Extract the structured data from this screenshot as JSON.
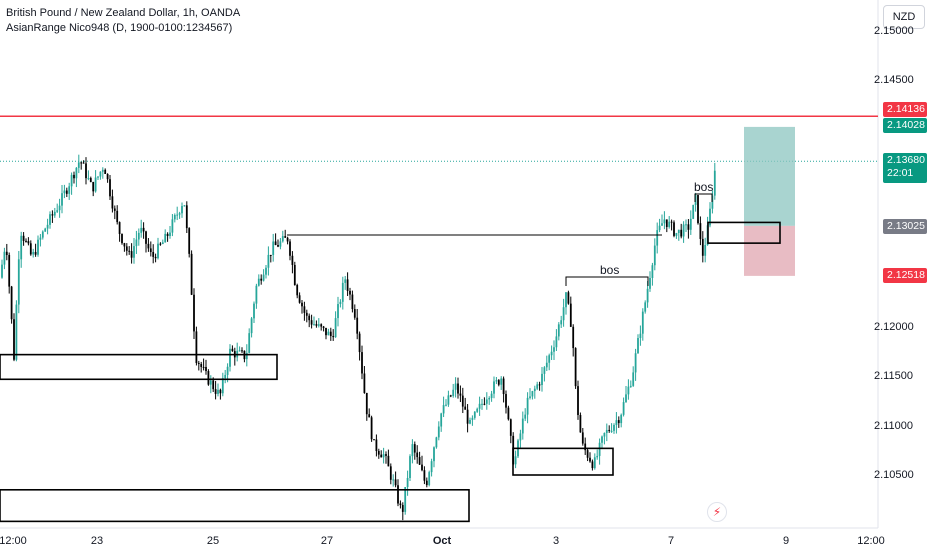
{
  "legend": {
    "symbol": "British Pound / New Zealand Dollar, 1h, OANDA",
    "indicator": "AsianRange Nico948 (D, 1900-0100:1234567)"
  },
  "currency_button": "NZD",
  "price_axis": {
    "ticks": [
      "2.15000",
      "2.14500",
      "2.12000",
      "2.11500",
      "2.11000",
      "2.10500"
    ]
  },
  "time_axis": {
    "ticks": [
      {
        "label": "12:00",
        "bold": false
      },
      {
        "label": "23",
        "bold": false
      },
      {
        "label": "25",
        "bold": false
      },
      {
        "label": "27",
        "bold": false
      },
      {
        "label": "Oct",
        "bold": true
      },
      {
        "label": "3",
        "bold": false
      },
      {
        "label": "7",
        "bold": false
      },
      {
        "label": "9",
        "bold": false
      },
      {
        "label": "12:00",
        "bold": false
      }
    ]
  },
  "price_tags": {
    "red_line": {
      "value": "2.14136",
      "color": "#f23645"
    },
    "take_profit": {
      "value": "2.14028",
      "color": "#089981"
    },
    "last_price": {
      "value": "2.13680",
      "countdown": "22:01",
      "color": "#089981"
    },
    "entry": {
      "value": "2.13025",
      "color": "#787b86"
    },
    "stop_loss": {
      "value": "2.12518",
      "color": "#f23645"
    }
  },
  "annotations": [
    {
      "text": "bos"
    },
    {
      "text": "bos"
    }
  ],
  "colors": {
    "up": "#26a69a",
    "down": "#000000",
    "red_line": "#f23645",
    "profit_zone": "#8cc6c0",
    "loss_zone": "#e0a6b0"
  },
  "chart_data": {
    "type": "candlestick",
    "series": [
      {
        "name": "GBPNZD",
        "points": [
          [
            "12:00",
            2.12
          ],
          [
            "23",
            2.133
          ],
          [
            "24",
            2.131
          ],
          [
            "25",
            2.116
          ],
          [
            "26",
            2.13
          ],
          [
            "27",
            2.12
          ],
          [
            "28",
            2.11
          ],
          [
            "Oct",
            2.106
          ],
          [
            "2",
            2.112
          ],
          [
            "3",
            2.121
          ],
          [
            "4",
            2.107
          ],
          [
            "7",
            2.131
          ],
          [
            "8",
            2.1368
          ]
        ]
      }
    ],
    "red_line_level": 2.14136,
    "position": {
      "entry": 2.13025,
      "take_profit": 2.14028,
      "stop_loss": 2.12518
    },
    "zones": [
      {
        "label": "zone-1",
        "top": 2.1172,
        "bottom": 2.1147
      },
      {
        "label": "zone-2",
        "top": 2.1035,
        "bottom": 2.1003
      },
      {
        "label": "zone-3",
        "top": 2.1077,
        "bottom": 2.105
      },
      {
        "label": "zone-4",
        "top": 2.1306,
        "bottom": 2.1285
      }
    ]
  }
}
